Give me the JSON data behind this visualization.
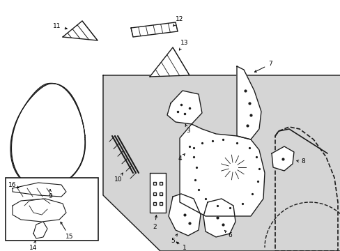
{
  "bg_color": "#ffffff",
  "line_color": "#1a1a1a",
  "shade_color": "#d8d8d8",
  "label_fontsize": 6.5,
  "text_color": "#000000",
  "figw": 4.89,
  "figh": 3.6,
  "dpi": 100
}
